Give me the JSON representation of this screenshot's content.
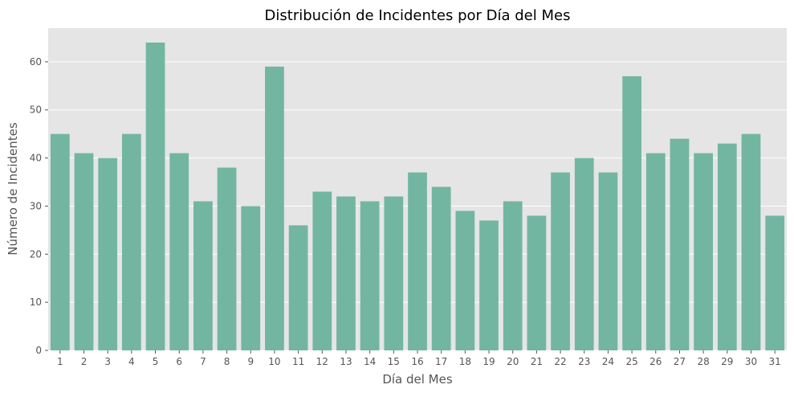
{
  "chart_data": {
    "type": "bar",
    "title": "Distribución de Incidentes por Día del Mes",
    "xlabel": "Día del Mes",
    "ylabel": "Número de Incidentes",
    "categories": [
      "1",
      "2",
      "3",
      "4",
      "5",
      "6",
      "7",
      "8",
      "9",
      "10",
      "11",
      "12",
      "13",
      "14",
      "15",
      "16",
      "17",
      "18",
      "19",
      "20",
      "21",
      "22",
      "23",
      "24",
      "25",
      "26",
      "27",
      "28",
      "29",
      "30",
      "31"
    ],
    "values": [
      45,
      41,
      40,
      45,
      64,
      41,
      31,
      38,
      30,
      59,
      26,
      33,
      32,
      31,
      32,
      37,
      34,
      29,
      27,
      31,
      28,
      37,
      40,
      37,
      57,
      41,
      44,
      41,
      43,
      45,
      28
    ],
    "ylim": [
      0,
      67
    ],
    "yticks": [
      0,
      10,
      20,
      30,
      40,
      50,
      60
    ],
    "grid": true,
    "colors": {
      "bar": "#72b6a1",
      "plot_background": "#e5e5e5",
      "grid": "#ffffff",
      "text": "#555555",
      "title": "#000000"
    }
  }
}
